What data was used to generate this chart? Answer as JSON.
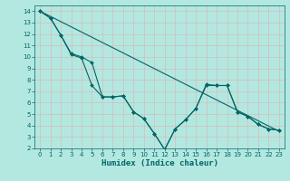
{
  "xlabel": "Humidex (Indice chaleur)",
  "background_color": "#b3e8e0",
  "grid_color": "#e8e8e8",
  "line_color": "#006666",
  "xlim": [
    -0.5,
    23.5
  ],
  "ylim": [
    2,
    14.5
  ],
  "xticks": [
    0,
    1,
    2,
    3,
    4,
    5,
    6,
    7,
    8,
    9,
    10,
    11,
    12,
    13,
    14,
    15,
    16,
    17,
    18,
    19,
    20,
    21,
    22,
    23
  ],
  "yticks": [
    2,
    3,
    4,
    5,
    6,
    7,
    8,
    9,
    10,
    11,
    12,
    13,
    14
  ],
  "line1_x": [
    0,
    1,
    2,
    3,
    4,
    5,
    6,
    7,
    8,
    9,
    10,
    11,
    12,
    13,
    14,
    15,
    16,
    17,
    18,
    19,
    20,
    21,
    22,
    23
  ],
  "line1_y": [
    14,
    13.4,
    11.9,
    10.2,
    9.9,
    7.5,
    6.5,
    6.5,
    6.6,
    5.2,
    4.6,
    3.3,
    1.9,
    3.7,
    4.5,
    5.5,
    7.6,
    7.5,
    7.5,
    5.2,
    4.8,
    4.1,
    3.7,
    3.6
  ],
  "line2_x": [
    0,
    1,
    2,
    3,
    4,
    5,
    6,
    7,
    8,
    9,
    10,
    11,
    12,
    13,
    14,
    15,
    16,
    17,
    18,
    19,
    20,
    21,
    22,
    23
  ],
  "line2_y": [
    14,
    13.4,
    11.9,
    10.3,
    10.0,
    9.5,
    6.5,
    6.5,
    6.6,
    5.2,
    4.6,
    3.3,
    1.9,
    3.7,
    4.5,
    5.5,
    7.5,
    7.5,
    7.5,
    5.2,
    4.8,
    4.1,
    3.7,
    3.6
  ],
  "line3_x": [
    0,
    23
  ],
  "line3_y": [
    14,
    3.5
  ]
}
